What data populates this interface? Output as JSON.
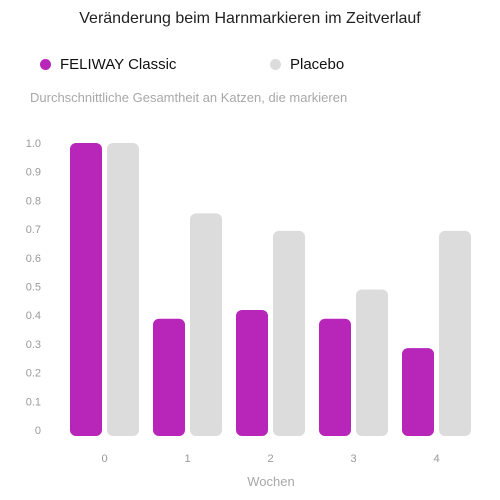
{
  "chart_data": {
    "type": "bar",
    "title": "Veränderung beim Harnmarkieren im Zeitverlauf",
    "ylabel": "Durchschnittliche Gesamtheit an Katzen, die markieren",
    "xlabel": "Wochen",
    "categories": [
      "0",
      "1",
      "2",
      "3",
      "4"
    ],
    "yticks": [
      "1.0",
      "0.9",
      "0.8",
      "0.7",
      "0.6",
      "0.5",
      "0.4",
      "0.3",
      "0.2",
      "0.1",
      "0"
    ],
    "ylim": [
      0,
      1.0
    ],
    "grid": false,
    "legend_position": "top-left",
    "series": [
      {
        "name": "FELIWAY Classic",
        "color": "#b726b9",
        "values": [
          1.0,
          0.4,
          0.43,
          0.4,
          0.3
        ]
      },
      {
        "name": "Placebo",
        "color": "#dcdcdc",
        "values": [
          1.0,
          0.76,
          0.7,
          0.5,
          0.7
        ]
      }
    ]
  }
}
